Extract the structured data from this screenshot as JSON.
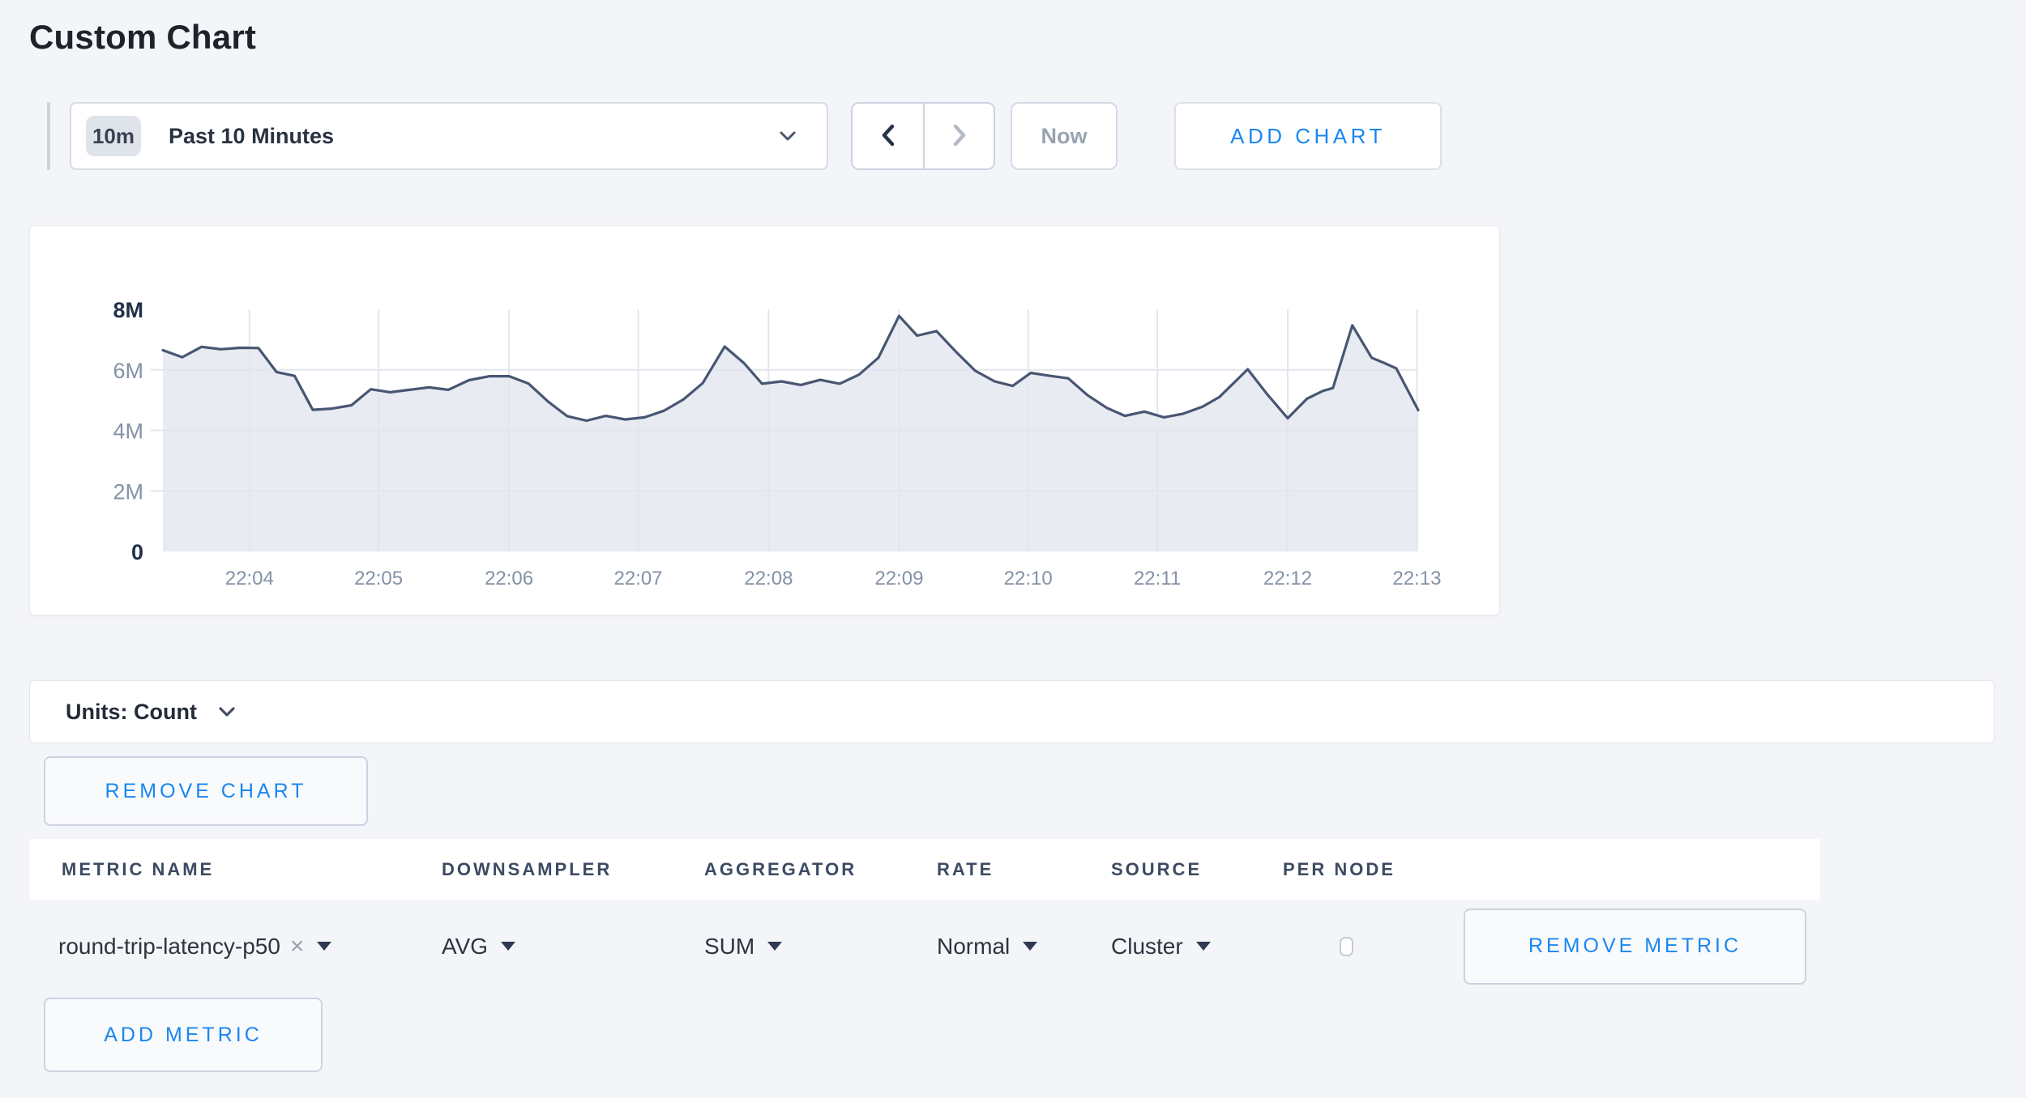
{
  "page": {
    "title": "Custom Chart"
  },
  "toolbar": {
    "time_badge": "10m",
    "time_label": "Past 10 Minutes",
    "now_label": "Now",
    "add_chart_label": "ADD CHART"
  },
  "chart_data": {
    "type": "area",
    "title": "",
    "xlabel": "",
    "ylabel": "",
    "legend": false,
    "grid": true,
    "series": [
      {
        "name": "round-trip-latency-p50",
        "color": "#475672",
        "fill": "#e9ebf2",
        "points": [
          [
            0.0,
            6.65
          ],
          [
            0.15,
            6.42
          ],
          [
            0.3,
            6.76
          ],
          [
            0.45,
            6.68
          ],
          [
            0.6,
            6.73
          ],
          [
            0.74,
            6.72
          ],
          [
            0.88,
            5.93
          ],
          [
            1.02,
            5.8
          ],
          [
            1.16,
            4.68
          ],
          [
            1.31,
            4.72
          ],
          [
            1.46,
            4.83
          ],
          [
            1.61,
            5.36
          ],
          [
            1.76,
            5.26
          ],
          [
            1.91,
            5.34
          ],
          [
            2.06,
            5.42
          ],
          [
            2.21,
            5.34
          ],
          [
            2.37,
            5.66
          ],
          [
            2.53,
            5.79
          ],
          [
            2.68,
            5.79
          ],
          [
            2.83,
            5.55
          ],
          [
            2.98,
            4.96
          ],
          [
            3.13,
            4.47
          ],
          [
            3.28,
            4.32
          ],
          [
            3.43,
            4.48
          ],
          [
            3.58,
            4.36
          ],
          [
            3.73,
            4.43
          ],
          [
            3.88,
            4.65
          ],
          [
            4.03,
            5.02
          ],
          [
            4.18,
            5.56
          ],
          [
            4.35,
            6.77
          ],
          [
            4.5,
            6.22
          ],
          [
            4.64,
            5.54
          ],
          [
            4.79,
            5.62
          ],
          [
            4.94,
            5.5
          ],
          [
            5.09,
            5.67
          ],
          [
            5.24,
            5.54
          ],
          [
            5.39,
            5.84
          ],
          [
            5.54,
            6.4
          ],
          [
            5.7,
            7.78
          ],
          [
            5.84,
            7.13
          ],
          [
            5.99,
            7.28
          ],
          [
            6.14,
            6.6
          ],
          [
            6.29,
            5.97
          ],
          [
            6.44,
            5.62
          ],
          [
            6.58,
            5.47
          ],
          [
            6.72,
            5.9
          ],
          [
            6.87,
            5.8
          ],
          [
            7.01,
            5.72
          ],
          [
            7.16,
            5.16
          ],
          [
            7.31,
            4.74
          ],
          [
            7.45,
            4.48
          ],
          [
            7.6,
            4.62
          ],
          [
            7.75,
            4.43
          ],
          [
            7.9,
            4.55
          ],
          [
            8.05,
            4.78
          ],
          [
            8.18,
            5.1
          ],
          [
            8.3,
            5.6
          ],
          [
            8.4,
            6.02
          ],
          [
            8.55,
            5.2
          ],
          [
            8.71,
            4.4
          ],
          [
            8.86,
            5.05
          ],
          [
            8.98,
            5.3
          ],
          [
            9.06,
            5.4
          ],
          [
            9.21,
            7.47
          ],
          [
            9.36,
            6.4
          ],
          [
            9.46,
            6.22
          ],
          [
            9.55,
            6.05
          ],
          [
            9.72,
            4.67
          ]
        ]
      }
    ],
    "x_axis": {
      "domain": [
        0,
        9.72
      ],
      "unit": "time",
      "ticks": [
        {
          "x": 0.67,
          "label": "22:04"
        },
        {
          "x": 1.67,
          "label": "22:05"
        },
        {
          "x": 2.68,
          "label": "22:06"
        },
        {
          "x": 3.68,
          "label": "22:07"
        },
        {
          "x": 4.69,
          "label": "22:08"
        },
        {
          "x": 5.7,
          "label": "22:09"
        },
        {
          "x": 6.7,
          "label": "22:10"
        },
        {
          "x": 7.7,
          "label": "22:11"
        },
        {
          "x": 8.71,
          "label": "22:12"
        },
        {
          "x": 9.71,
          "label": "22:13"
        }
      ]
    },
    "y_axis": {
      "domain": [
        0,
        8000000
      ],
      "domain_m": [
        0,
        8
      ],
      "unit": "count",
      "ticks": [
        {
          "v": 0,
          "label": "0",
          "bold": true
        },
        {
          "v": 2,
          "label": "2M",
          "bold": false
        },
        {
          "v": 4,
          "label": "4M",
          "bold": false
        },
        {
          "v": 6,
          "label": "6M",
          "bold": false
        },
        {
          "v": 8,
          "label": "8M",
          "bold": true
        }
      ],
      "gridline_values": [
        2,
        4,
        6
      ]
    }
  },
  "units_bar": {
    "label": "Units: Count"
  },
  "chart_actions": {
    "remove_chart_label": "REMOVE CHART"
  },
  "metrics_table": {
    "headers": [
      "METRIC NAME",
      "DOWNSAMPLER",
      "AGGREGATOR",
      "RATE",
      "SOURCE",
      "PER NODE"
    ],
    "rows": [
      {
        "metric_name": "round-trip-latency-p50",
        "remove_icon": "×",
        "downsampler": "AVG",
        "aggregator": "SUM",
        "rate": "Normal",
        "source": "Cluster",
        "per_node_checked": false,
        "remove_label": "REMOVE METRIC"
      }
    ],
    "add_metric_label": "ADD METRIC"
  },
  "colors": {
    "accent_blue": "#1a87f0",
    "line": "#475672",
    "area_fill": "#e9ebf2",
    "gridline": "#e2e6ee",
    "axis_label": "#8492a6",
    "axis_label_bold": "#223048"
  },
  "icons": {
    "time_range_caret": "chevron-down",
    "prev": "chevron-left",
    "next": "chevron-right",
    "units_caret": "chevron-down"
  }
}
